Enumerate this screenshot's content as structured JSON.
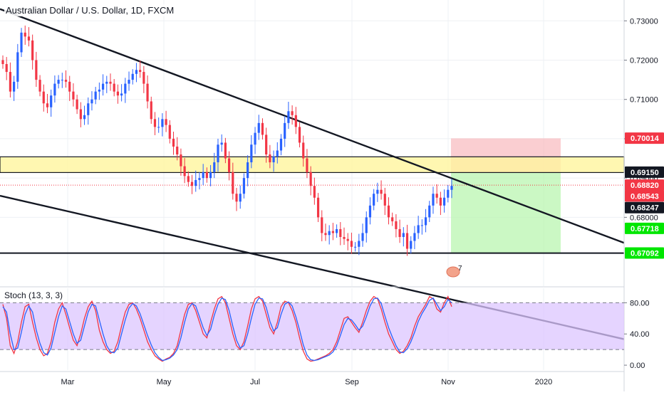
{
  "chart_data": [
    {
      "type": "candlestick",
      "title": "Australian Dollar / U.S. Dollar, 1D, FXCM",
      "x_ticks": [
        "Mar",
        "May",
        "Jul",
        "Sep",
        "Nov",
        "2020"
      ],
      "y_ticks": [
        "0.73000",
        "0.72000",
        "0.71000",
        "0.70000",
        "0.69000",
        "0.68000"
      ],
      "ylim": [
        0.6625,
        0.7353
      ],
      "grid": true,
      "price_labels": [
        {
          "text": "0.70014",
          "value": 0.70014,
          "color": "#f23645"
        },
        {
          "text": "0.69150",
          "value": 0.6915,
          "color": "#131722"
        },
        {
          "text": "0.68820",
          "value": 0.6882,
          "color": "#f23645"
        },
        {
          "text": "0.68543",
          "value": 0.68543,
          "color": "#f23645"
        },
        {
          "text": "0.68247",
          "value": 0.68247,
          "color": "#131722"
        },
        {
          "text": "0.67718",
          "value": 0.67718,
          "color": "#00e600"
        },
        {
          "text": "0.67092",
          "value": 0.67092,
          "color": "#00e600"
        }
      ],
      "zones": {
        "resistance": [
          0.6914,
          0.6954
        ],
        "stop": [
          0.6914,
          0.7001
        ],
        "target": [
          0.6709,
          0.6914
        ]
      },
      "horizontal_line": 0.6709,
      "current_price": 0.6882,
      "channel": {
        "upper": [
          [
            0,
            0.733
          ],
          [
            1,
            0.6735
          ]
        ],
        "lower": [
          [
            0,
            0.6855
          ],
          [
            1,
            0.649
          ]
        ]
      },
      "close_series": [
        0.719,
        0.717,
        0.712,
        0.7145,
        0.722,
        0.727,
        0.726,
        0.725,
        0.72,
        0.715,
        0.712,
        0.709,
        0.708,
        0.711,
        0.714,
        0.715,
        0.715,
        0.7145,
        0.712,
        0.71,
        0.7075,
        0.705,
        0.706,
        0.709,
        0.71,
        0.712,
        0.7125,
        0.714,
        0.7145,
        0.714,
        0.712,
        0.711,
        0.7115,
        0.714,
        0.715,
        0.7165,
        0.7175,
        0.717,
        0.714,
        0.7095,
        0.705,
        0.703,
        0.703,
        0.705,
        0.7035,
        0.7,
        0.698,
        0.696,
        0.693,
        0.6905,
        0.689,
        0.688,
        0.6895,
        0.69,
        0.6915,
        0.69,
        0.6915,
        0.694,
        0.6985,
        0.699,
        0.695,
        0.6915,
        0.686,
        0.684,
        0.686,
        0.69,
        0.694,
        0.6985,
        0.7015,
        0.704,
        0.701,
        0.696,
        0.694,
        0.6955,
        0.697,
        0.7,
        0.704,
        0.707,
        0.706,
        0.703,
        0.699,
        0.695,
        0.6915,
        0.688,
        0.685,
        0.68,
        0.676,
        0.6755,
        0.6765,
        0.676,
        0.677,
        0.675,
        0.6745,
        0.674,
        0.6725,
        0.6725,
        0.674,
        0.676,
        0.68,
        0.683,
        0.686,
        0.687,
        0.686,
        0.683,
        0.68,
        0.679,
        0.677,
        0.675,
        0.676,
        0.672,
        0.674,
        0.676,
        0.678,
        0.678,
        0.68,
        0.683,
        0.686,
        0.685,
        0.683,
        0.685,
        0.687,
        0.688
      ],
      "series_colors": {
        "up": "#2962ff",
        "down": "#f23645"
      }
    },
    {
      "type": "line",
      "title": "Stoch (13, 3, 3)",
      "y_ticks": [
        "80.00",
        "40.00",
        "0.00"
      ],
      "ylim": [
        -6.3,
        98.6
      ],
      "band": [
        20,
        80
      ],
      "series": [
        {
          "values": [
            78,
            60,
            25,
            15,
            30,
            55,
            75,
            78,
            55,
            35,
            20,
            12,
            15,
            30,
            55,
            72,
            80,
            65,
            48,
            32,
            25,
            40,
            60,
            75,
            82,
            70,
            45,
            30,
            20,
            15,
            18,
            30,
            50,
            68,
            78,
            80,
            72,
            60,
            45,
            30,
            20,
            12,
            8,
            5,
            8,
            10,
            15,
            25,
            45,
            65,
            78,
            80,
            70,
            55,
            40,
            35,
            55,
            72,
            85,
            88,
            80,
            60,
            40,
            25,
            20,
            30,
            50,
            72,
            85,
            88,
            82,
            65,
            48,
            40,
            55,
            75,
            82,
            80,
            70,
            55,
            35,
            18,
            8,
            5,
            6,
            8,
            10,
            12,
            15,
            20,
            30,
            45,
            60,
            62,
            55,
            48,
            42,
            55,
            70,
            82,
            88,
            85,
            72,
            55,
            40,
            30,
            20,
            15,
            18,
            25,
            35,
            50,
            62,
            70,
            78,
            88,
            85,
            72,
            68,
            80,
            88,
            75
          ]
        },
        {
          "values": [
            75,
            68,
            40,
            20,
            22,
            42,
            65,
            76,
            68,
            45,
            28,
            16,
            13,
            22,
            42,
            62,
            76,
            72,
            56,
            40,
            28,
            32,
            50,
            68,
            78,
            76,
            58,
            40,
            25,
            17,
            16,
            22,
            40,
            58,
            73,
            79,
            76,
            66,
            52,
            38,
            26,
            16,
            10,
            6,
            7,
            9,
            13,
            20,
            35,
            55,
            72,
            79,
            76,
            62,
            48,
            38,
            46,
            64,
            78,
            86,
            84,
            70,
            50,
            32,
            22,
            25,
            40,
            60,
            78,
            86,
            85,
            74,
            56,
            44,
            48,
            65,
            78,
            81,
            76,
            62,
            45,
            26,
            13,
            7,
            6,
            7,
            9,
            11,
            13,
            17,
            25,
            38,
            52,
            60,
            58,
            52,
            45,
            50,
            62,
            76,
            85,
            86,
            79,
            63,
            48,
            36,
            25,
            17,
            16,
            21,
            30,
            42,
            56,
            66,
            74,
            83,
            86,
            78,
            70,
            75,
            84,
            80
          ]
        }
      ],
      "series_colors": [
        "#f23645",
        "#2962ff"
      ]
    }
  ],
  "axis": {
    "x_labels": [
      "Mar",
      "May",
      "Jul",
      "Sep",
      "Nov",
      "2020"
    ]
  },
  "annotation": {
    "badge_number": "7"
  }
}
